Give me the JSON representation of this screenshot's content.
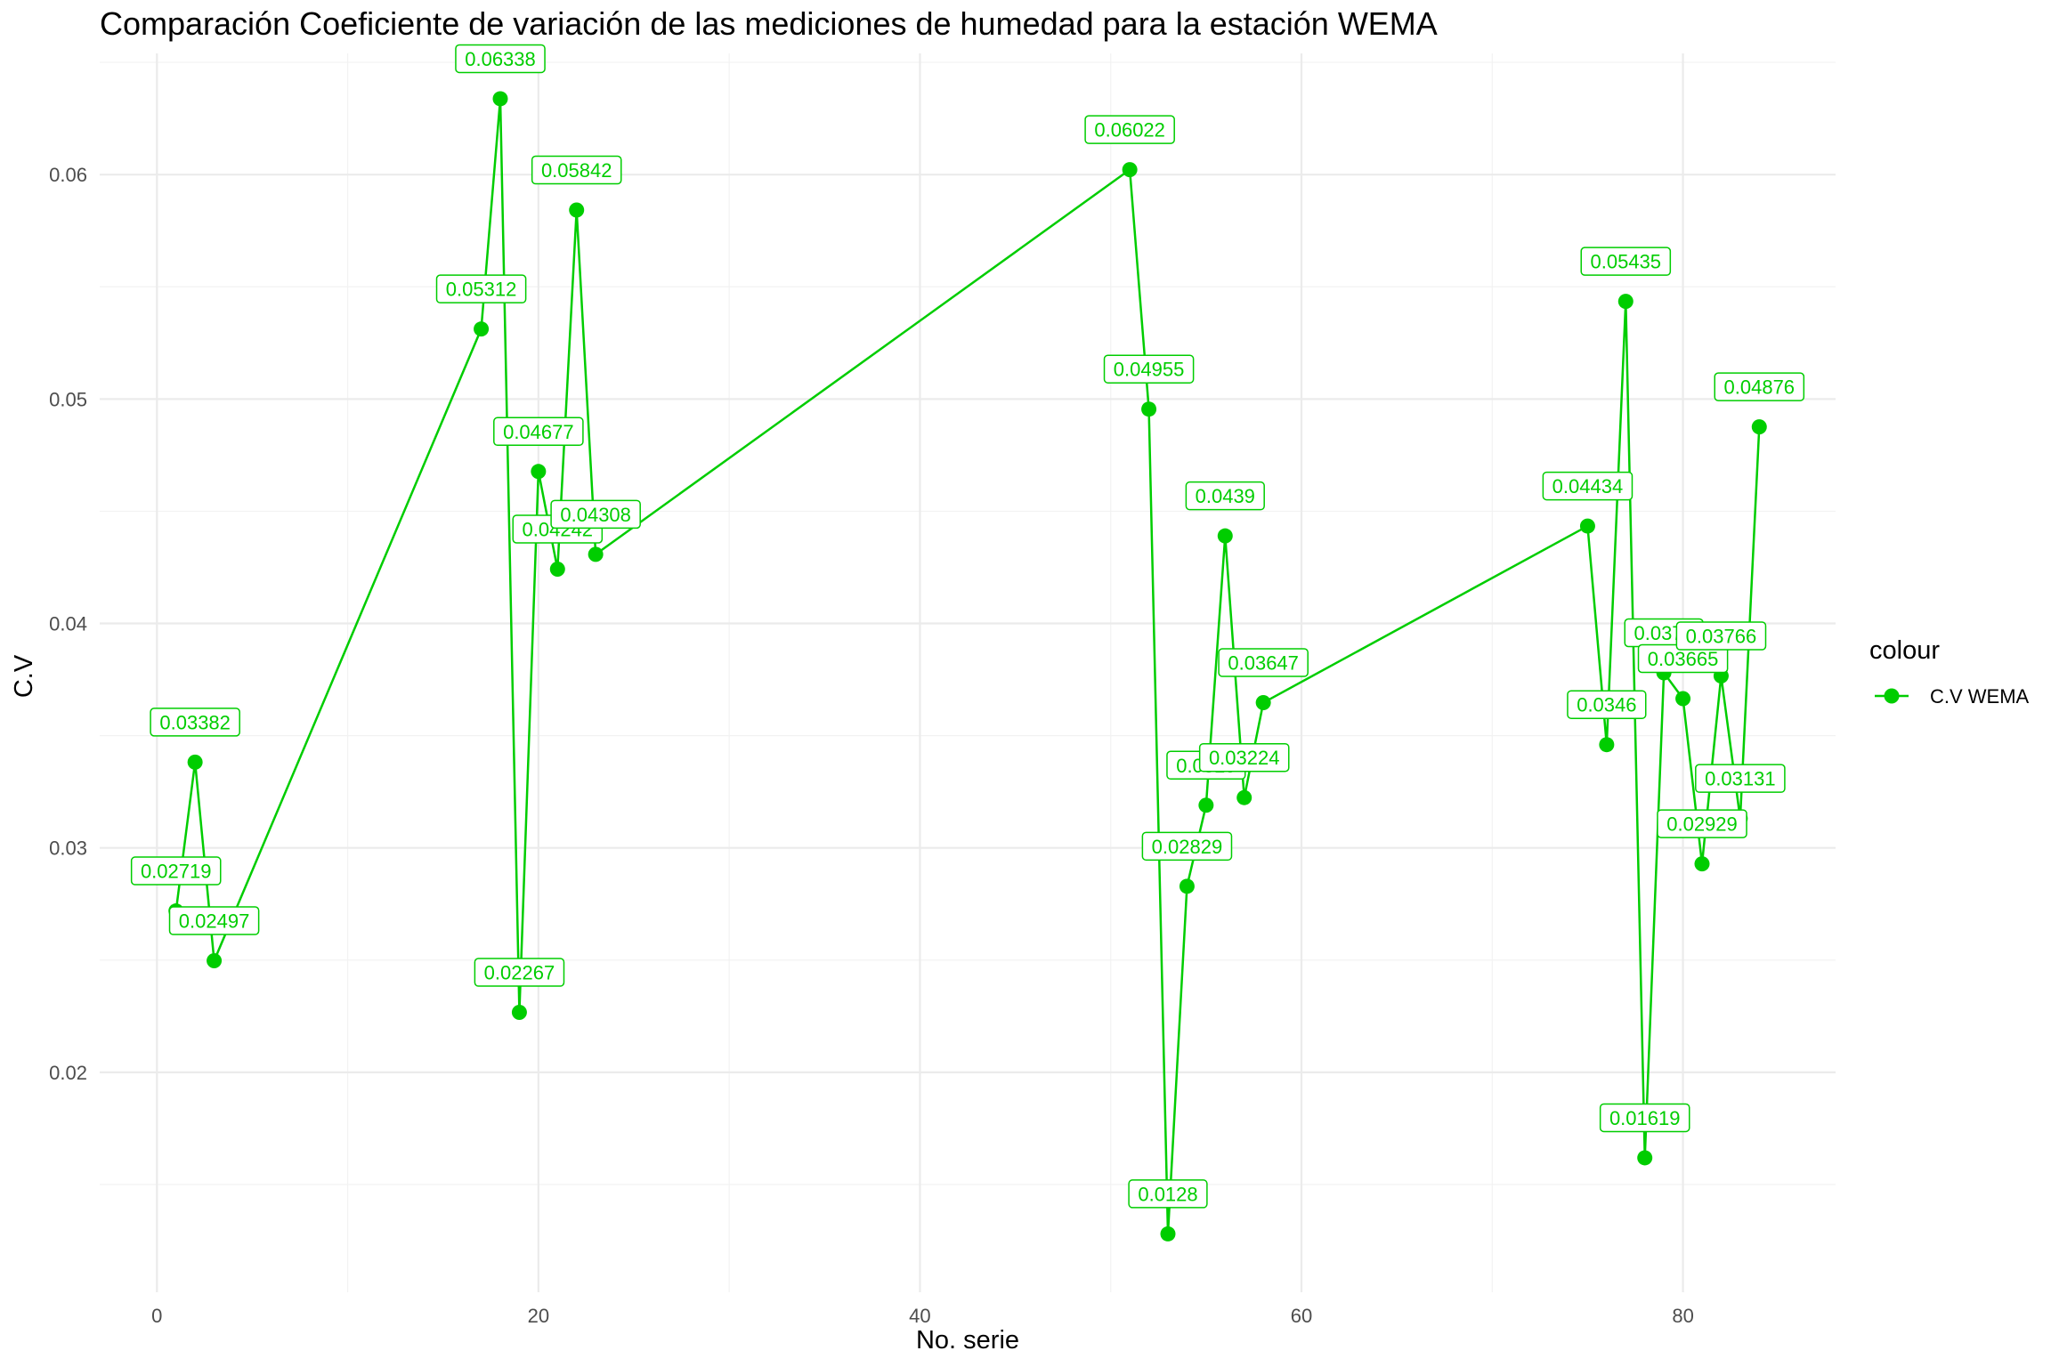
{
  "chart_data": {
    "type": "line",
    "title": "Comparación Coeficiente de variación de las mediciones de humedad para la estación WEMA",
    "xlabel": "No. serie",
    "ylabel": "C.V",
    "xlim": [
      -3,
      88
    ],
    "ylim": [
      0.0102,
      0.0654
    ],
    "x_ticks": [
      0,
      20,
      40,
      60,
      80
    ],
    "y_ticks": [
      0.02,
      0.03,
      0.04,
      0.05,
      0.06
    ],
    "y_tick_labels": [
      "0.02",
      "0.03",
      "0.04",
      "0.05",
      "0.06"
    ],
    "grid": true,
    "legend_position": "right",
    "legend_title": "colour",
    "series": [
      {
        "name": "C.V WEMA",
        "color": "#00cd00",
        "x": [
          1,
          2,
          3,
          17,
          18,
          19,
          20,
          21,
          22,
          23,
          51,
          52,
          53,
          54,
          55,
          56,
          57,
          58,
          75,
          76,
          77,
          78,
          79,
          80,
          81,
          82,
          83,
          84
        ],
        "y": [
          0.02719,
          0.03382,
          0.02497,
          0.05312,
          0.06338,
          0.02267,
          0.04677,
          0.04242,
          0.05842,
          0.04308,
          0.06022,
          0.04955,
          0.0128,
          0.02829,
          0.0319,
          0.0439,
          0.03224,
          0.03647,
          0.04434,
          0.0346,
          0.05435,
          0.01619,
          0.0378,
          0.03665,
          0.02929,
          0.03766,
          0.03131,
          0.04876
        ],
        "labels": [
          "0.02719",
          "0.03382",
          "0.02497",
          "0.05312",
          "0.06338",
          "0.02267",
          "0.04677",
          "0.04242",
          "0.05842",
          "0.04308",
          "0.06022",
          "0.04955",
          "0.0128",
          "0.02829",
          "0.0319",
          "0.0439",
          "0.03224",
          "0.03647",
          "0.04434",
          "0.0346",
          "0.05435",
          "0.01619",
          "0.0378",
          "0.03665",
          "0.02929",
          "0.03766",
          "0.03131",
          "0.04876"
        ]
      }
    ]
  }
}
